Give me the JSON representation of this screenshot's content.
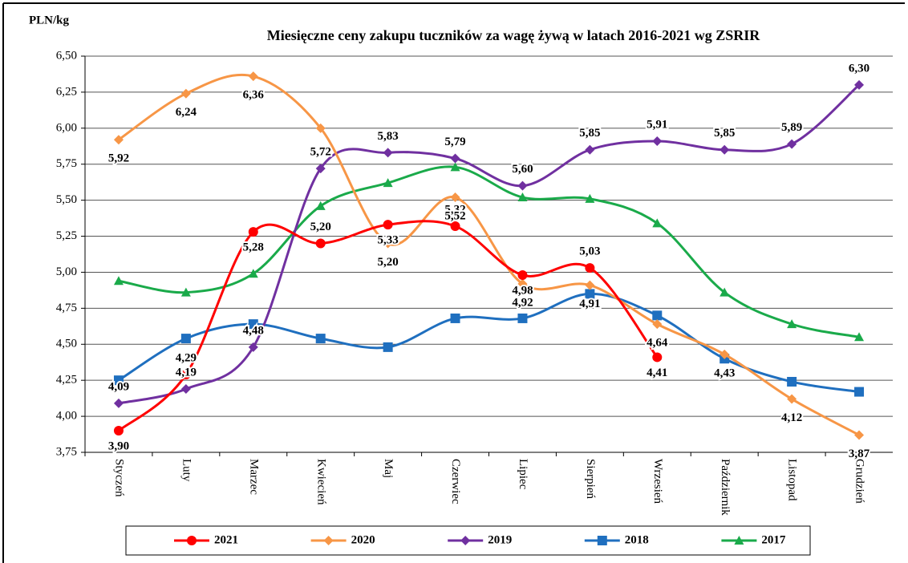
{
  "chart_data": {
    "type": "line",
    "title": "Miesięczne ceny zakupu tuczników za wagę żywą w latach 2016-2021 wg ZSRIR",
    "y_label": "PLN/kg",
    "categories": [
      "Styczeń",
      "Luty",
      "Marzec",
      "Kwiecień",
      "Maj",
      "Czerwiec",
      "Lipiec",
      "Sierpień",
      "Wrzesień",
      "Październik",
      "Listopad",
      "Grudzień"
    ],
    "series": [
      {
        "name": "2021",
        "color": "#ff0000",
        "marker": "circle",
        "values": [
          3.9,
          4.29,
          5.28,
          5.2,
          5.33,
          5.32,
          4.98,
          5.03,
          4.41,
          null,
          null,
          null
        ],
        "value_labels": [
          "3,90",
          "4,29",
          "5,28",
          "5,20",
          "5,33",
          "5,32",
          "4,98",
          "5,03",
          "4,41",
          null,
          null,
          null
        ]
      },
      {
        "name": "2020",
        "color": "#f79646",
        "marker": "diamond",
        "values": [
          5.92,
          6.24,
          6.36,
          6.0,
          5.2,
          5.52,
          4.92,
          4.91,
          4.64,
          4.43,
          4.12,
          3.87
        ],
        "value_labels": [
          "5,92",
          "6,24",
          "6,36",
          null,
          "5,20",
          "5,52",
          "4,92",
          "4,91",
          "4,64",
          "4,43",
          "4,12",
          "3,87"
        ]
      },
      {
        "name": "2019",
        "color": "#7030a0",
        "marker": "diamond",
        "values": [
          4.09,
          4.19,
          4.48,
          5.72,
          5.83,
          5.79,
          5.6,
          5.85,
          5.91,
          5.85,
          5.89,
          6.3
        ],
        "value_labels": [
          "4,09",
          "4,19",
          "4,48",
          "5,72",
          "5,83",
          "5,79",
          "5,60",
          "5,85",
          "5,91",
          "5,85",
          "5,89",
          "6,30"
        ]
      },
      {
        "name": "2018",
        "color": "#1f6fbf",
        "marker": "square",
        "values": [
          4.25,
          4.54,
          4.64,
          4.54,
          4.48,
          4.68,
          4.68,
          4.85,
          4.7,
          4.4,
          4.24,
          4.17
        ]
      },
      {
        "name": "2017",
        "color": "#1aaa4a",
        "marker": "triangle",
        "values": [
          4.94,
          4.86,
          4.99,
          5.46,
          5.62,
          5.73,
          5.52,
          5.51,
          5.34,
          4.86,
          4.64,
          4.55
        ]
      }
    ],
    "ylim": [
      3.75,
      6.5
    ],
    "yticks": [
      {
        "value": 3.75,
        "label": "3,75"
      },
      {
        "value": 4.0,
        "label": "4,00"
      },
      {
        "value": 4.25,
        "label": "4,25"
      },
      {
        "value": 4.5,
        "label": "4,50"
      },
      {
        "value": 4.75,
        "label": "4,75"
      },
      {
        "value": 5.0,
        "label": "5,00"
      },
      {
        "value": 5.25,
        "label": "5,25"
      },
      {
        "value": 5.5,
        "label": "5,50"
      },
      {
        "value": 5.75,
        "label": "5,75"
      },
      {
        "value": 6.0,
        "label": "6,00"
      },
      {
        "value": 6.25,
        "label": "6,25"
      },
      {
        "value": 6.5,
        "label": "6,50"
      }
    ],
    "grid": true,
    "legend": "bottom"
  }
}
